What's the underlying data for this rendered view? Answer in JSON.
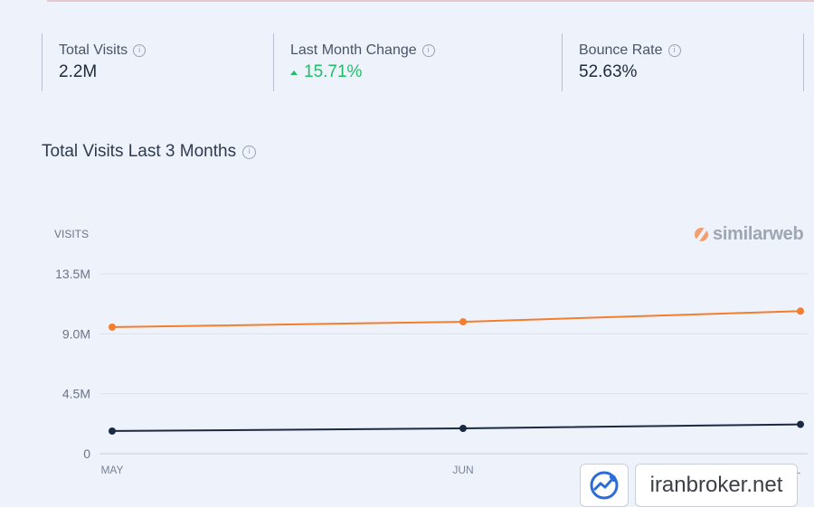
{
  "metrics": [
    {
      "label": "Total Visits",
      "value": "2.2M"
    },
    {
      "label": "Last Month Change",
      "value": "15.71%",
      "trend": "up",
      "color": "#1fbf6a"
    },
    {
      "label": "Bounce Rate",
      "value": "52.63%"
    }
  ],
  "info_icon": "i",
  "section": {
    "title": "Total Visits Last 3 Months"
  },
  "brand": {
    "name": "similarweb"
  },
  "watermark": {
    "text": "iranbroker.net",
    "icon": "trend-chart-icon"
  },
  "chart_data": {
    "type": "line",
    "ylabel": "VISITS",
    "categories": [
      "MAY",
      "JUN",
      "JUL"
    ],
    "x_labels_shown": [
      "MAY",
      "JUN",
      "L"
    ],
    "ylim": [
      0,
      13500000
    ],
    "yticks": [
      "13.5M",
      "9.0M",
      "4.5M",
      "0"
    ],
    "yticks_values": [
      13500000,
      9000000,
      4500000,
      0
    ],
    "grid": true,
    "series": [
      {
        "values": [
          9500000,
          9900000,
          10700000
        ],
        "color": "#f47d2e"
      },
      {
        "values": [
          1700000,
          1900000,
          2200000
        ],
        "color": "#1b2a43"
      }
    ]
  }
}
